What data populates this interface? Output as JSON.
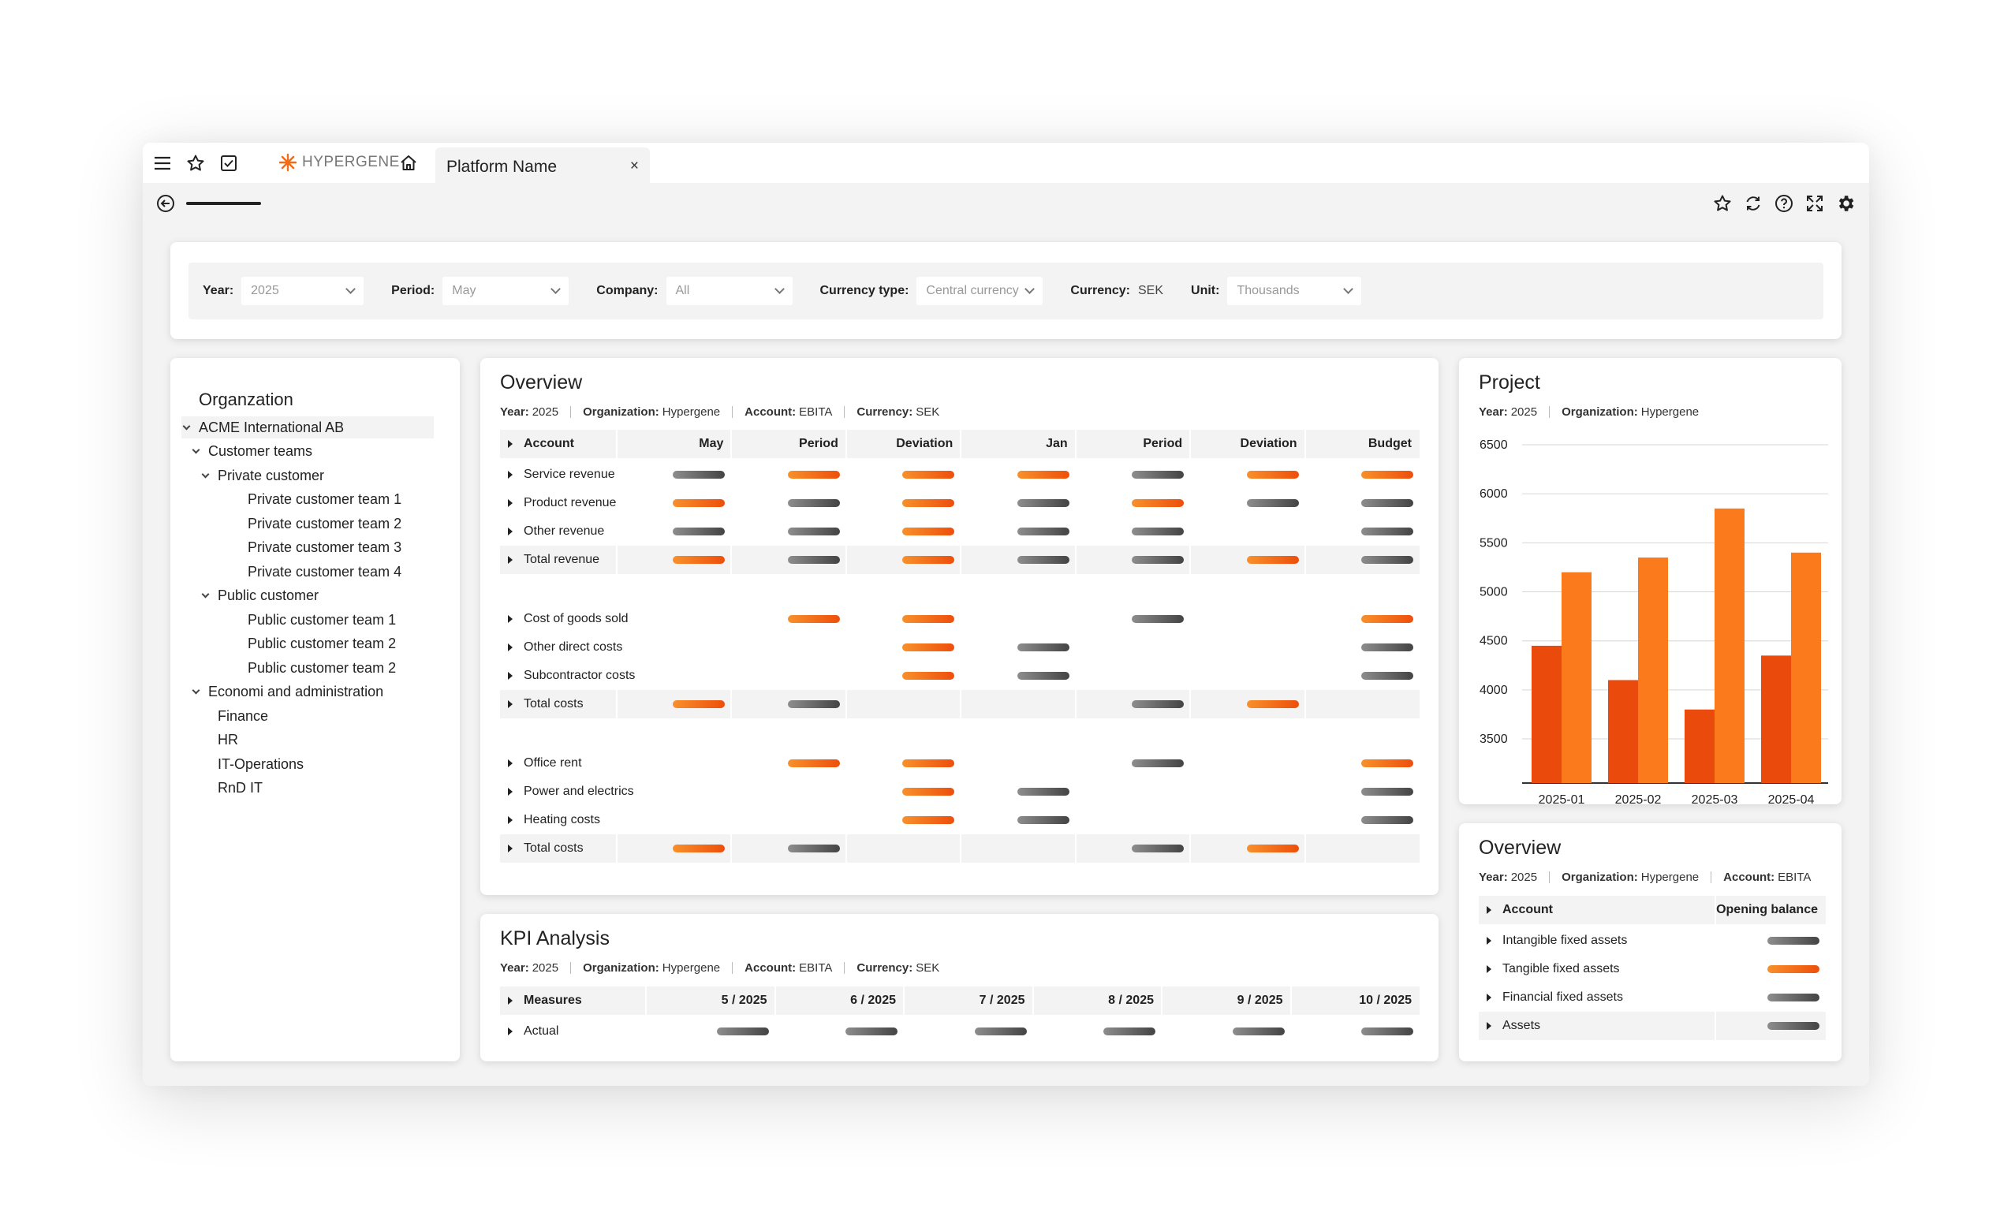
{
  "tabbar": {
    "brand_name": "HYPERGENE",
    "tab_title": "Platform Name",
    "close_glyph": "×",
    "icons": [
      "menu-icon",
      "star-icon",
      "checkbox-icon",
      "home-icon"
    ]
  },
  "toolbar": {
    "icons_right": [
      "star-icon",
      "refresh-icon",
      "help-icon",
      "expand-icon",
      "settings-icon"
    ]
  },
  "filters": [
    {
      "label": "Year:",
      "value": "2025",
      "type": "select"
    },
    {
      "label": "Period:",
      "value": "May",
      "type": "select"
    },
    {
      "label": "Company:",
      "value": "All",
      "type": "select"
    },
    {
      "label": "Currency type:",
      "value": "Central currency",
      "type": "select"
    },
    {
      "label": "Currency:",
      "value": "SEK",
      "type": "text"
    },
    {
      "label": "Unit:",
      "value": "Thousands",
      "type": "select"
    }
  ],
  "organization": {
    "title": "Organzation",
    "items": [
      {
        "label": "ACME International AB",
        "level": 0,
        "expanded": true,
        "selected": true
      },
      {
        "label": "Customer teams",
        "level": 1,
        "expanded": true
      },
      {
        "label": "Private customer",
        "level": 2,
        "expanded": true
      },
      {
        "label": "Private customer team 1",
        "level": 3
      },
      {
        "label": "Private customer team 2",
        "level": 3
      },
      {
        "label": "Private customer team 3",
        "level": 3
      },
      {
        "label": "Private customer team 4",
        "level": 3
      },
      {
        "label": "Public customer",
        "level": 2,
        "expanded": true
      },
      {
        "label": "Public customer team 1",
        "level": 3
      },
      {
        "label": "Public customer team 2",
        "level": 3
      },
      {
        "label": "Public customer team 2",
        "level": 3
      },
      {
        "label": "Economi and administration",
        "level": 1,
        "expanded": true
      },
      {
        "label": "Finance",
        "level": 2
      },
      {
        "label": "HR",
        "level": 2
      },
      {
        "label": "IT-Operations",
        "level": 2
      },
      {
        "label": "RnD IT",
        "level": 2
      }
    ]
  },
  "overview": {
    "title": "Overview",
    "meta": [
      {
        "k": "Year:",
        "v": "2025"
      },
      {
        "k": "Organization:",
        "v": "Hypergene"
      },
      {
        "k": "Account:",
        "v": "EBITA"
      },
      {
        "k": "Currency:",
        "v": "SEK"
      }
    ],
    "columns": [
      "Account",
      "May",
      "Period",
      "Deviation",
      "Jan",
      "Period",
      "Deviation",
      "Budget"
    ],
    "rows": [
      {
        "label": "Service revenue",
        "cells": [
          "g",
          "o",
          "o",
          "o",
          "g",
          "o",
          "o"
        ]
      },
      {
        "label": "Product revenue",
        "cells": [
          "o",
          "g",
          "o",
          "g",
          "o",
          "g",
          "g"
        ]
      },
      {
        "label": "Other revenue",
        "cells": [
          "g",
          "g",
          "o",
          "g",
          "g",
          "",
          "g"
        ]
      },
      {
        "label": "Total revenue",
        "shade": true,
        "cells": [
          "o",
          "g",
          "o",
          "g",
          "g",
          "o",
          "g"
        ]
      },
      {
        "spacer": true
      },
      {
        "label": "Cost of goods sold",
        "cells": [
          "",
          "o",
          "o",
          "",
          "g",
          "",
          "o"
        ]
      },
      {
        "label": "Other direct costs",
        "cells": [
          "",
          "",
          "o",
          "g",
          "",
          "",
          "g"
        ]
      },
      {
        "label": "Subcontractor costs",
        "cells": [
          "",
          "",
          "o",
          "g",
          "",
          "",
          "g"
        ]
      },
      {
        "label": "Total costs",
        "shade": true,
        "cells": [
          "o",
          "g",
          "",
          "",
          "g",
          "o",
          ""
        ]
      },
      {
        "spacer": true
      },
      {
        "label": "Office rent",
        "cells": [
          "",
          "o",
          "o",
          "",
          "g",
          "",
          "o"
        ]
      },
      {
        "label": "Power and electrics",
        "cells": [
          "",
          "",
          "o",
          "g",
          "",
          "",
          "g"
        ]
      },
      {
        "label": "Heating costs",
        "cells": [
          "",
          "",
          "o",
          "g",
          "",
          "",
          "g"
        ]
      },
      {
        "label": "Total costs",
        "shade": true,
        "cells": [
          "o",
          "g",
          "",
          "",
          "g",
          "o",
          ""
        ]
      }
    ]
  },
  "kpi": {
    "title": "KPI Analysis",
    "meta": [
      {
        "k": "Year:",
        "v": "2025"
      },
      {
        "k": "Organization:",
        "v": "Hypergene"
      },
      {
        "k": "Account:",
        "v": "EBITA"
      },
      {
        "k": "Currency:",
        "v": "SEK"
      }
    ],
    "columns": [
      "Measures",
      "5 / 2025",
      "6 / 2025",
      "7 / 2025",
      "8 / 2025",
      "9 / 2025",
      "10 / 2025"
    ],
    "rows": [
      {
        "label": "Actual",
        "cells": [
          "g",
          "g",
          "g",
          "g",
          "g",
          "g"
        ]
      }
    ]
  },
  "project": {
    "title": "Project",
    "meta": [
      {
        "k": "Year:",
        "v": "2025"
      },
      {
        "k": "Organization:",
        "v": "Hypergene"
      }
    ]
  },
  "chart_data": {
    "type": "bar",
    "categories": [
      "2025-01",
      "2025-02",
      "2025-03",
      "2025-04"
    ],
    "series": [
      {
        "values": [
          4450,
          4100,
          3800,
          4350
        ]
      },
      {
        "values": [
          5200,
          5350,
          5850,
          5400
        ]
      }
    ],
    "yticks": [
      3500,
      4000,
      4500,
      5000,
      5500,
      6000,
      6500
    ],
    "ylim": [
      3050,
      6500
    ],
    "grid": true,
    "colors": [
      "#ea4b0d",
      "#fb7a1b"
    ]
  },
  "overview2": {
    "title": "Overview",
    "meta": [
      {
        "k": "Year:",
        "v": "2025"
      },
      {
        "k": "Organization:",
        "v": "Hypergene"
      },
      {
        "k": "Account:",
        "v": "EBITA"
      }
    ],
    "columns": [
      "Account",
      "Opening balance"
    ],
    "rows": [
      {
        "label": "Intangible fixed assets",
        "cells": [
          "g"
        ]
      },
      {
        "label": "Tangible fixed assets",
        "cells": [
          "o"
        ]
      },
      {
        "label": "Financial fixed assets",
        "cells": [
          "g"
        ]
      },
      {
        "label": "Assets",
        "shade": true,
        "cells": [
          "g"
        ]
      }
    ]
  },
  "colors": {
    "accent": "#f36b17",
    "gray": "#5a5a5a",
    "panel": "#f3f3f3"
  }
}
